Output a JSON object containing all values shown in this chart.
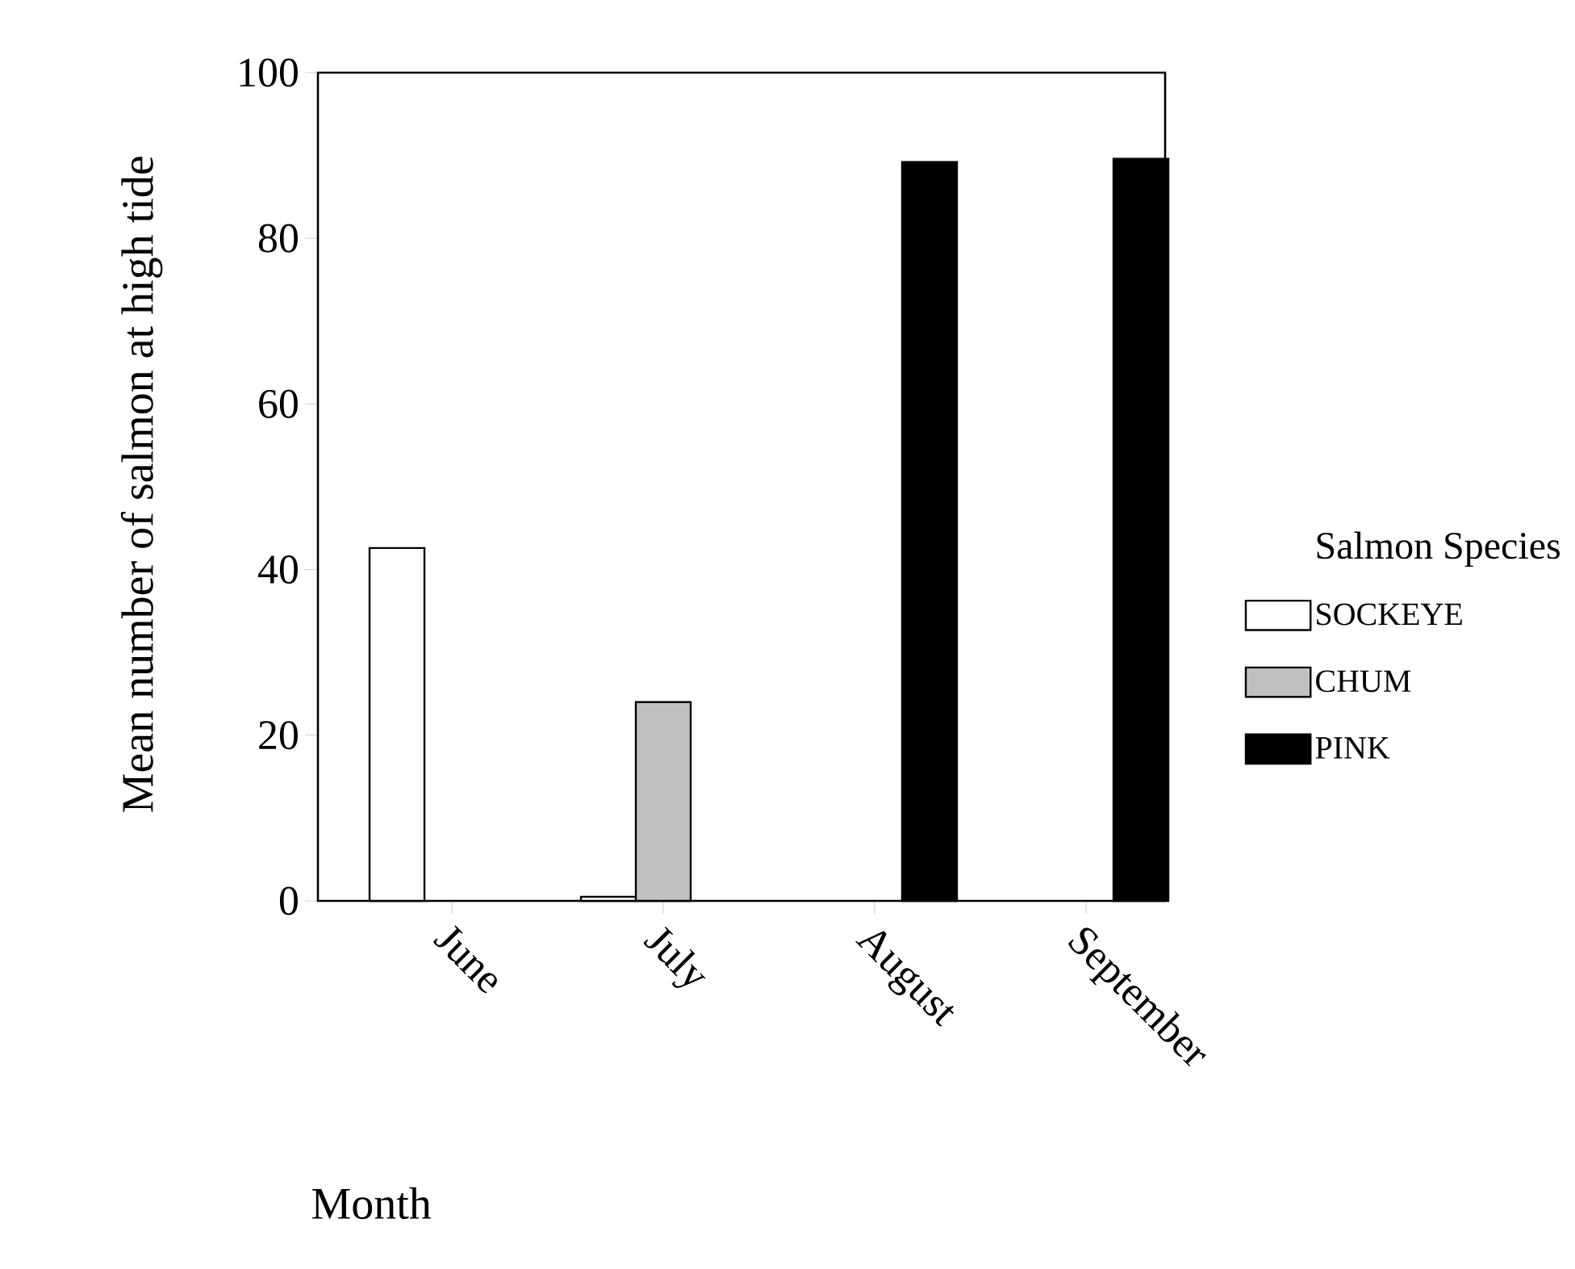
{
  "chart_data": {
    "type": "bar",
    "xlabel": "Month",
    "ylabel": "Mean number of salmon at high tide",
    "legend_title": "Salmon Species",
    "categories": [
      "June",
      "July",
      "August",
      "September"
    ],
    "series": [
      {
        "name": "SOCKEYE",
        "color": "#ffffff",
        "values": [
          42.6,
          0.5,
          null,
          null
        ]
      },
      {
        "name": "CHUM",
        "color": "#c0c0c0",
        "values": [
          null,
          24.0,
          null,
          null
        ]
      },
      {
        "name": "PINK",
        "color": "#000000",
        "values": [
          null,
          null,
          89.2,
          89.6
        ]
      }
    ],
    "ylim": [
      0,
      100
    ],
    "yticks": [
      0,
      20,
      40,
      60,
      80,
      100
    ],
    "legend": "right"
  }
}
